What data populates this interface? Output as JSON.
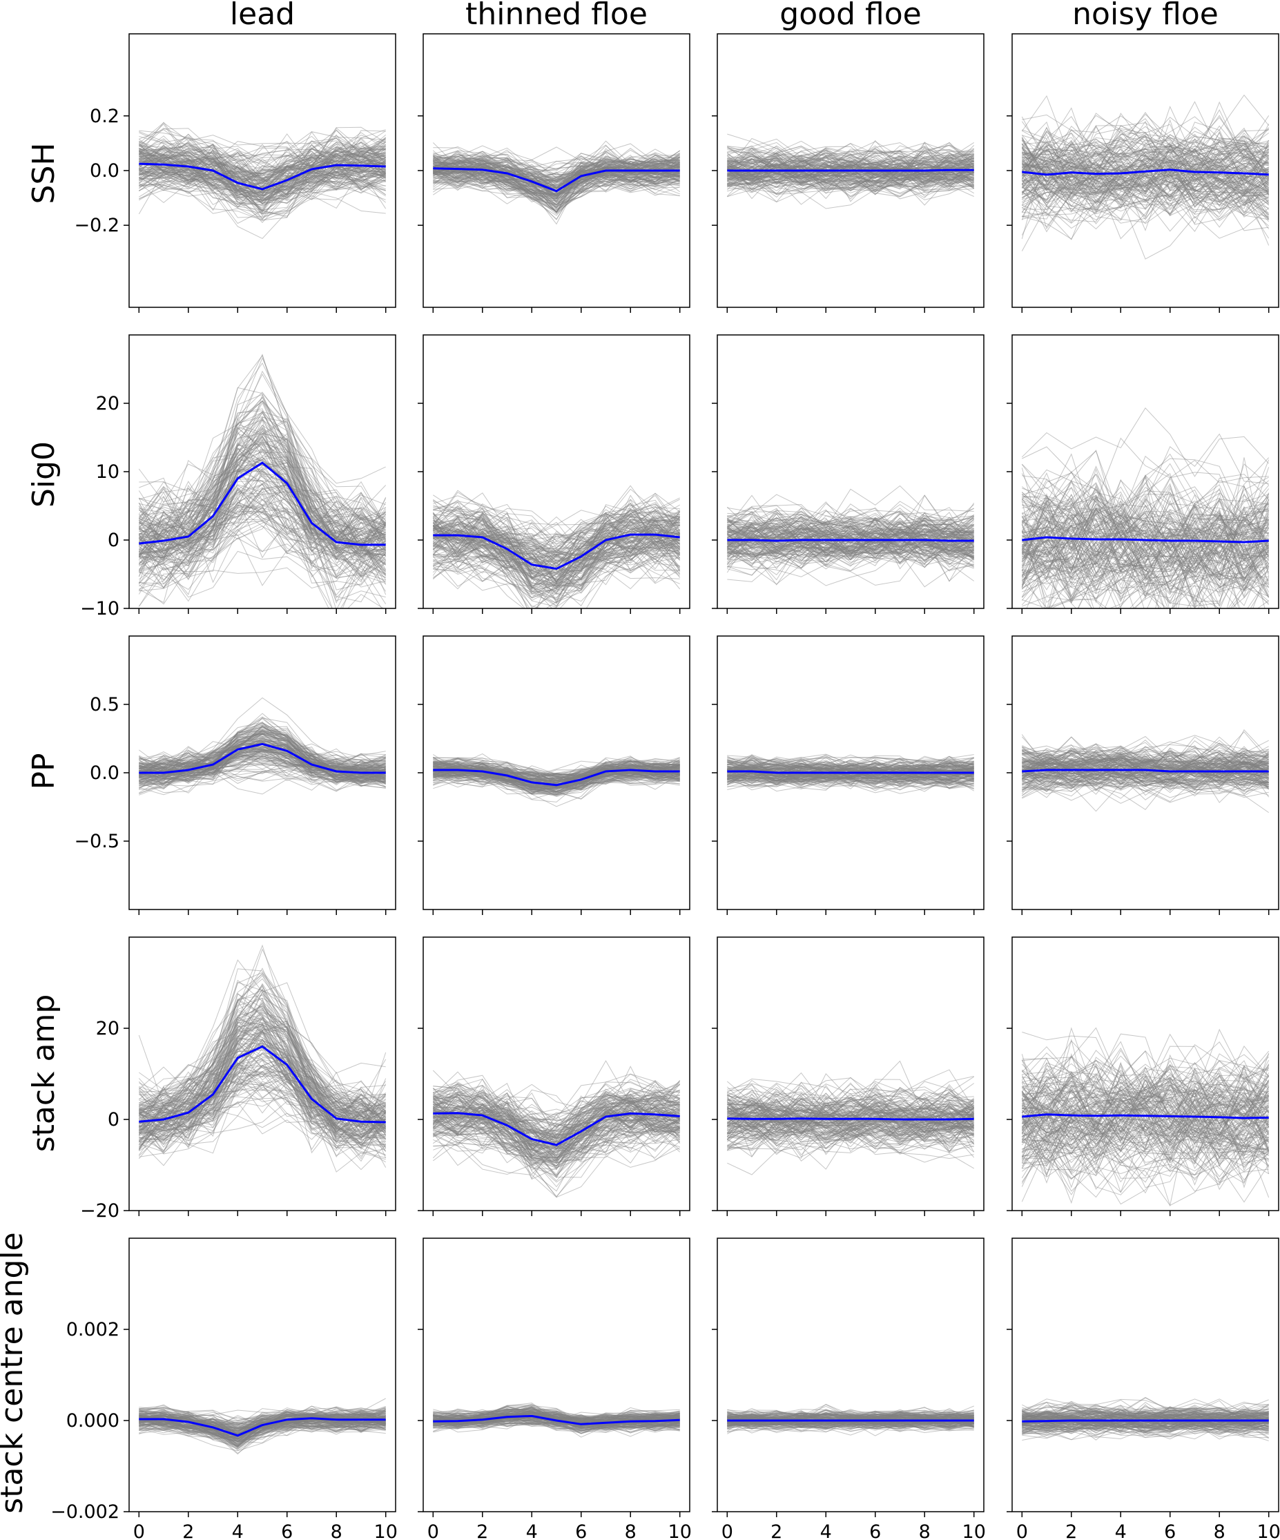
{
  "colors": {
    "traces": "#808080",
    "mean": "#0000ff",
    "frame": "#000000",
    "background": "#ffffff"
  },
  "chart_data": {
    "type": "line",
    "layout": "grid of 5 rows x 4 columns",
    "columns": [
      "lead",
      "thinned floe",
      "good floe",
      "noisy floe"
    ],
    "rows": [
      {
        "label": "SSH",
        "ylim": [
          -0.5,
          0.5
        ],
        "yticks": [
          -0.2,
          0.0,
          0.2
        ],
        "ytick_labels": [
          "−0.2",
          "0.0",
          "0.2"
        ]
      },
      {
        "label": "Sig0",
        "ylim": [
          -10,
          30
        ],
        "yticks": [
          -10,
          0,
          10,
          20
        ],
        "ytick_labels": [
          "−10",
          "0",
          "10",
          "20"
        ]
      },
      {
        "label": "PP",
        "ylim": [
          -1.0,
          1.0
        ],
        "yticks": [
          -0.5,
          0.0,
          0.5
        ],
        "ytick_labels": [
          "−0.5",
          "0.0",
          "0.5"
        ]
      },
      {
        "label": "stack amp",
        "ylim": [
          -20,
          40
        ],
        "yticks": [
          -20,
          0,
          20
        ],
        "ytick_labels": [
          "−20",
          "0",
          "20"
        ]
      },
      {
        "label": "stack centre angle",
        "ylim": [
          -0.002,
          0.004
        ],
        "yticks": [
          -0.002,
          0.0,
          0.002
        ],
        "ytick_labels": [
          "−0.002",
          "0.000",
          "0.002"
        ]
      }
    ],
    "x": [
      0,
      1,
      2,
      3,
      4,
      5,
      6,
      7,
      8,
      9,
      10
    ],
    "xlim": [
      -0.4,
      10.4
    ],
    "xticks": [
      0,
      2,
      4,
      6,
      8,
      10
    ],
    "xtick_labels": [
      "0",
      "2",
      "4",
      "6",
      "8",
      "10"
    ],
    "grid": false,
    "mean_curves": [
      [
        [
          0.025,
          0.022,
          0.015,
          0.0,
          -0.045,
          -0.068,
          -0.035,
          0.005,
          0.02,
          0.018,
          0.015
        ],
        [
          0.008,
          0.006,
          0.003,
          -0.01,
          -0.04,
          -0.075,
          -0.02,
          0.0,
          0.0,
          0.0,
          0.0
        ],
        [
          0.0,
          0.0,
          0.0,
          0.0,
          0.0,
          0.0,
          0.0,
          0.0,
          0.0,
          0.002,
          0.002
        ],
        [
          -0.005,
          -0.015,
          -0.007,
          -0.012,
          -0.01,
          -0.003,
          0.003,
          -0.005,
          -0.007,
          -0.01,
          -0.015
        ]
      ],
      [
        [
          -0.5,
          -0.1,
          0.5,
          3.5,
          9.0,
          11.3,
          8.3,
          2.5,
          -0.3,
          -0.7,
          -0.7
        ],
        [
          0.7,
          0.7,
          0.4,
          -1.3,
          -3.6,
          -4.2,
          -2.4,
          0.0,
          0.8,
          0.8,
          0.4
        ],
        [
          0.0,
          0.0,
          -0.1,
          0.0,
          0.0,
          0.0,
          0.0,
          0.0,
          0.0,
          -0.1,
          -0.1
        ],
        [
          0.0,
          0.4,
          0.2,
          0.1,
          0.1,
          0.0,
          -0.1,
          -0.1,
          -0.2,
          -0.3,
          -0.1
        ]
      ],
      [
        [
          0.0,
          0.0,
          0.02,
          0.06,
          0.17,
          0.21,
          0.16,
          0.06,
          0.01,
          0.0,
          0.0
        ],
        [
          0.02,
          0.02,
          0.01,
          -0.02,
          -0.07,
          -0.09,
          -0.05,
          0.01,
          0.02,
          0.01,
          0.01
        ],
        [
          0.01,
          0.01,
          0.0,
          0.0,
          0.0,
          0.0,
          0.0,
          0.0,
          0.0,
          0.0,
          0.0
        ],
        [
          0.01,
          0.02,
          0.02,
          0.02,
          0.02,
          0.02,
          0.01,
          0.01,
          0.01,
          0.01,
          0.01
        ]
      ],
      [
        [
          -0.5,
          0.0,
          1.5,
          5.5,
          13.5,
          16.0,
          12.0,
          4.5,
          0.2,
          -0.5,
          -0.6
        ],
        [
          1.3,
          1.4,
          0.9,
          -1.3,
          -4.3,
          -5.6,
          -2.6,
          0.6,
          1.3,
          1.1,
          0.7
        ],
        [
          0.2,
          0.1,
          0.1,
          0.2,
          0.1,
          0.1,
          0.1,
          0.0,
          0.0,
          0.0,
          0.1
        ],
        [
          0.6,
          1.1,
          0.9,
          0.8,
          0.9,
          0.8,
          0.7,
          0.6,
          0.5,
          0.3,
          0.4
        ]
      ],
      [
        [
          3e-05,
          3e-05,
          -3e-05,
          -0.00015,
          -0.00033,
          -0.0001,
          2e-05,
          5e-05,
          2e-05,
          2e-05,
          2e-05
        ],
        [
          -2e-05,
          -1e-05,
          2e-05,
          8e-05,
          0.0001,
          0.0,
          -8e-05,
          -5e-05,
          -2e-05,
          -1e-05,
          1e-05
        ],
        [
          0.0,
          0.0,
          0.0,
          0.0,
          0.0,
          0.0,
          0.0,
          0.0,
          0.0,
          0.0,
          0.0
        ],
        [
          -2e-05,
          -1e-05,
          0.0,
          0.0,
          0.0,
          0.0,
          0.0,
          0.0,
          0.0,
          0.0,
          0.0
        ]
      ]
    ],
    "trace_spread": [
      [
        0.06,
        0.04,
        0.05,
        0.1
      ],
      [
        4.0,
        3.0,
        2.5,
        6.0
      ],
      [
        0.07,
        0.05,
        0.06,
        0.1
      ],
      [
        5.0,
        4.0,
        4.0,
        8.0
      ],
      [
        0.00015,
        0.00012,
        0.00012,
        0.00018
      ]
    ],
    "trace_shape_scale": [
      [
        0.5,
        0.4,
        0.0,
        0.0
      ],
      [
        0.45,
        0.45,
        0.0,
        0.0
      ],
      [
        0.4,
        0.4,
        0.0,
        0.0
      ],
      [
        0.45,
        0.45,
        0.0,
        0.0
      ],
      [
        0.4,
        0.3,
        0.0,
        0.0
      ]
    ]
  }
}
